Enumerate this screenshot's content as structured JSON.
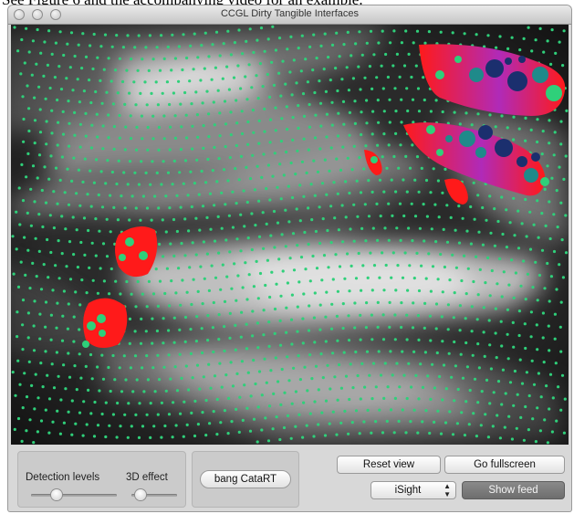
{
  "caption": "See Figure 6 and the accompanying video for an example.",
  "window": {
    "title": "CCGL Dirty Tangible Interfaces"
  },
  "controls": {
    "detection_levels_label": "Detection levels",
    "effect_3d_label": "3D effect",
    "detection_level": 0.3,
    "effect_3d_level": 0.2,
    "bang_catart_label": "bang CataRT",
    "reset_view_label": "Reset view",
    "go_fullscreen_label": "Go fullscreen",
    "camera_source": "iSight",
    "show_feed_label": "Show feed"
  },
  "colors": {
    "grid_dot": "#2fd07a",
    "blob_red": "#ff1a1a",
    "blob_magenta": "#b02ab8",
    "blob_dot_dark": "#1b2f6e"
  }
}
